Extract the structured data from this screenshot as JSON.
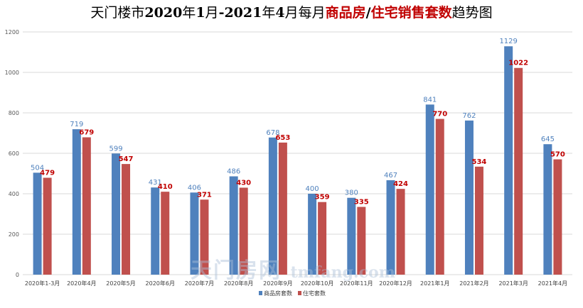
{
  "chart_data": {
    "type": "bar",
    "title": {
      "parts": [
        {
          "text": "天门楼市",
          "bold": false,
          "color": "#000000"
        },
        {
          "text": "2020",
          "bold": true,
          "color": "#000000"
        },
        {
          "text": "年",
          "bold": false,
          "color": "#000000"
        },
        {
          "text": "1",
          "bold": true,
          "color": "#000000"
        },
        {
          "text": "月",
          "bold": false,
          "color": "#000000"
        },
        {
          "text": "-2021",
          "bold": true,
          "color": "#000000"
        },
        {
          "text": "年",
          "bold": false,
          "color": "#000000"
        },
        {
          "text": "4",
          "bold": true,
          "color": "#000000"
        },
        {
          "text": "月每月",
          "bold": false,
          "color": "#000000"
        },
        {
          "text": "商品房",
          "bold": true,
          "color": "#c00000"
        },
        {
          "text": "/",
          "bold": true,
          "color": "#000000"
        },
        {
          "text": "住宅销售套数",
          "bold": true,
          "color": "#c00000"
        },
        {
          "text": "趋势图",
          "bold": false,
          "color": "#000000"
        }
      ]
    },
    "categories": [
      "2020年1-3月",
      "2020年4月",
      "2020年5月",
      "2020年6月",
      "2020年7月",
      "2020年8月",
      "2020年9月",
      "2020年10月",
      "2020年11月",
      "2020年12月",
      "2021年1月",
      "2021年2月",
      "2021年3月",
      "2021年4月"
    ],
    "series": [
      {
        "name": "商品房套数",
        "color": "#4f81bd",
        "label_color": "#4f81bd",
        "values": [
          504,
          719,
          599,
          431,
          406,
          486,
          678,
          400,
          380,
          467,
          841,
          762,
          1129,
          645
        ]
      },
      {
        "name": "住宅套数",
        "color": "#c0504d",
        "label_color": "#c00000",
        "values": [
          479,
          679,
          547,
          410,
          371,
          430,
          653,
          359,
          335,
          424,
          770,
          534,
          1022,
          570
        ]
      }
    ],
    "ylim": [
      0,
      1200
    ],
    "yticks": [
      0,
      200,
      400,
      600,
      800,
      1000,
      1200
    ],
    "grid": true,
    "legend": "bottom"
  },
  "watermark": {
    "brand": "天门房网",
    "url": "tmfang.com"
  }
}
